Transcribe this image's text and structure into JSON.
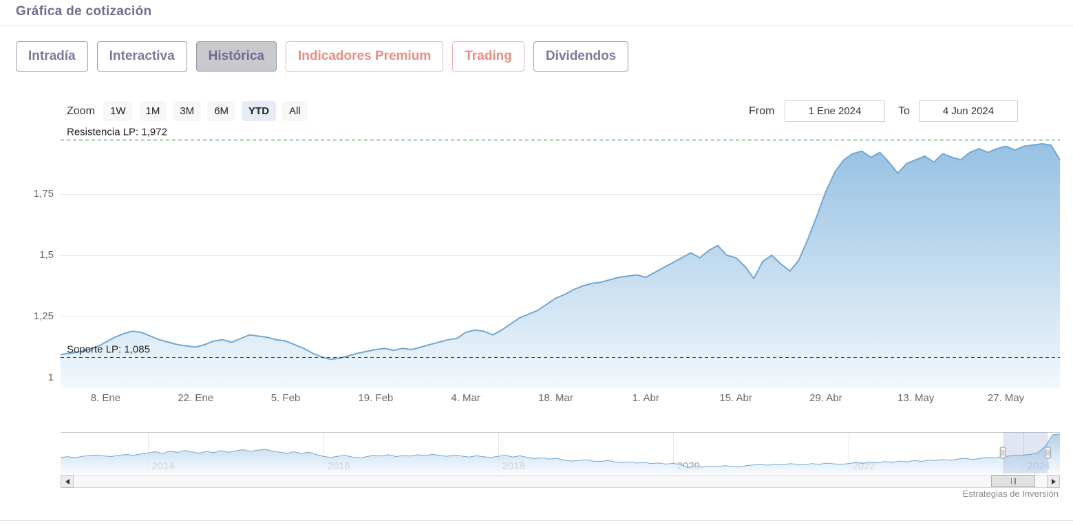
{
  "header": {
    "title": "Gráfica de cotización"
  },
  "tabs": [
    {
      "label": "Intradía",
      "style": "purple",
      "active": false
    },
    {
      "label": "Interactiva",
      "style": "purple",
      "active": false
    },
    {
      "label": "Histórica",
      "style": "purple",
      "active": true
    },
    {
      "label": "Indicadores Premium",
      "style": "red",
      "active": false
    },
    {
      "label": "Trading",
      "style": "red",
      "active": false
    },
    {
      "label": "Dividendos",
      "style": "purple",
      "active": false
    }
  ],
  "range_selector": {
    "zoom_label": "Zoom",
    "buttons": [
      {
        "label": "1W",
        "active": false
      },
      {
        "label": "1M",
        "active": false
      },
      {
        "label": "3M",
        "active": false
      },
      {
        "label": "6M",
        "active": false
      },
      {
        "label": "YTD",
        "active": true
      },
      {
        "label": "All",
        "active": false
      }
    ],
    "from_label": "From",
    "from_value": "1 Ene 2024",
    "to_label": "To",
    "to_value": "4 Jun 2024"
  },
  "chart_data": [
    {
      "name": "price-history-ytd",
      "type": "area",
      "title": "",
      "xlabel": "",
      "ylabel": "",
      "x_tick_labels": [
        "8. Ene",
        "22. Ene",
        "5. Feb",
        "19. Feb",
        "4. Mar",
        "18. Mar",
        "1. Abr",
        "15. Abr",
        "29. Abr",
        "13. May",
        "27. May"
      ],
      "x_tick_indices": [
        5,
        15,
        25,
        35,
        45,
        55,
        65,
        75,
        85,
        95,
        105
      ],
      "y_ticks": [
        {
          "value": 1.0,
          "label": "1"
        },
        {
          "value": 1.25,
          "label": "1,25"
        },
        {
          "value": 1.5,
          "label": "1,5"
        },
        {
          "value": 1.75,
          "label": "1,75"
        }
      ],
      "ylim": [
        0.96,
        2.07
      ],
      "grid": true,
      "values": [
        1.095,
        1.1,
        1.105,
        1.115,
        1.125,
        1.145,
        1.165,
        1.18,
        1.19,
        1.185,
        1.17,
        1.155,
        1.145,
        1.135,
        1.13,
        1.125,
        1.135,
        1.15,
        1.155,
        1.145,
        1.16,
        1.175,
        1.17,
        1.165,
        1.155,
        1.15,
        1.135,
        1.12,
        1.1,
        1.085,
        1.075,
        1.08,
        1.09,
        1.1,
        1.108,
        1.115,
        1.12,
        1.112,
        1.12,
        1.115,
        1.125,
        1.135,
        1.145,
        1.155,
        1.16,
        1.185,
        1.195,
        1.19,
        1.175,
        1.195,
        1.22,
        1.245,
        1.26,
        1.275,
        1.3,
        1.325,
        1.34,
        1.36,
        1.375,
        1.385,
        1.39,
        1.4,
        1.41,
        1.415,
        1.42,
        1.41,
        1.43,
        1.45,
        1.47,
        1.49,
        1.51,
        1.49,
        1.52,
        1.54,
        1.5,
        1.49,
        1.455,
        1.405,
        1.475,
        1.5,
        1.465,
        1.435,
        1.48,
        1.565,
        1.66,
        1.76,
        1.84,
        1.89,
        1.915,
        1.925,
        1.9,
        1.92,
        1.88,
        1.835,
        1.875,
        1.89,
        1.905,
        1.88,
        1.915,
        1.9,
        1.89,
        1.92,
        1.935,
        1.92,
        1.935,
        1.945,
        1.93,
        1.945,
        1.95,
        1.955,
        1.95,
        1.89
      ],
      "annotations": [
        {
          "name": "resistencia-lp",
          "label": "Resistencia LP: 1,972",
          "value": 1.972,
          "color": "#147a14"
        },
        {
          "name": "soporte-lp",
          "label": "Soporte LP: 1,085",
          "value": 1.085,
          "color": "#cc0000"
        }
      ],
      "colors": {
        "line": "#71a7d2",
        "fill_top": "#85b6de",
        "fill_bottom": "#f0f7fc",
        "grid": "#e6e6e6",
        "axis_line": "#ccd6eb",
        "tick_label": "#666666",
        "annotation_text": "#222222"
      }
    },
    {
      "name": "navigator-full-history",
      "type": "area",
      "x_tick_labels": [
        "2014",
        "2016",
        "2018",
        "2020",
        "2022",
        "2024"
      ],
      "x_tick_indices": [
        12,
        36,
        60,
        84,
        108,
        132
      ],
      "values": [
        1.0,
        1.03,
        0.99,
        1.05,
        1.08,
        1.1,
        1.06,
        1.04,
        1.09,
        1.12,
        1.09,
        1.14,
        1.18,
        1.23,
        1.16,
        1.26,
        1.2,
        1.28,
        1.22,
        1.17,
        1.24,
        1.19,
        1.27,
        1.21,
        1.26,
        1.31,
        1.24,
        1.29,
        1.33,
        1.26,
        1.21,
        1.17,
        1.23,
        1.16,
        1.21,
        1.13,
        1.05,
        1.0,
        1.05,
        1.09,
        1.02,
        0.98,
        1.04,
        1.09,
        1.06,
        1.11,
        1.04,
        1.08,
        1.06,
        1.11,
        1.08,
        1.13,
        1.08,
        1.05,
        1.1,
        1.06,
        1.02,
        1.07,
        1.03,
        1.0,
        1.05,
        1.09,
        1.02,
        1.07,
        1.0,
        0.96,
        0.99,
        0.94,
        0.97,
        0.9,
        0.86,
        0.89,
        0.91,
        0.86,
        0.84,
        0.88,
        0.83,
        0.8,
        0.83,
        0.78,
        0.81,
        0.76,
        0.79,
        0.74,
        0.77,
        0.72,
        0.61,
        0.65,
        0.62,
        0.66,
        0.64,
        0.68,
        0.65,
        0.62,
        0.68,
        0.71,
        0.72,
        0.7,
        0.74,
        0.71,
        0.76,
        0.73,
        0.71,
        0.76,
        0.73,
        0.78,
        0.75,
        0.73,
        0.76,
        0.8,
        0.77,
        0.82,
        0.79,
        0.84,
        0.81,
        0.86,
        0.83,
        0.88,
        0.85,
        0.9,
        0.88,
        0.92,
        0.89,
        0.94,
        0.97,
        0.92,
        0.96,
        1.01,
        0.98,
        1.03,
        1.06,
        1.09,
        1.1,
        1.13,
        1.19,
        1.45,
        1.9,
        1.93
      ],
      "vmin_render": 0.4,
      "vmax_render": 1.95,
      "selection": {
        "start_frac": 0.943,
        "end_frac": 0.988
      },
      "colors": {
        "line": "#74a7d0",
        "fill_top": "#9ec4e5",
        "fill_bottom": "#f2f8fd",
        "grid": "#e6e6e6",
        "year_label": "#999999",
        "mask": "rgba(102,133,194,0.2)",
        "handle_fill": "#f2f2f2",
        "handle_stroke": "#999999"
      }
    }
  ],
  "footer": {
    "credit": "Estrategias de Inversión"
  }
}
